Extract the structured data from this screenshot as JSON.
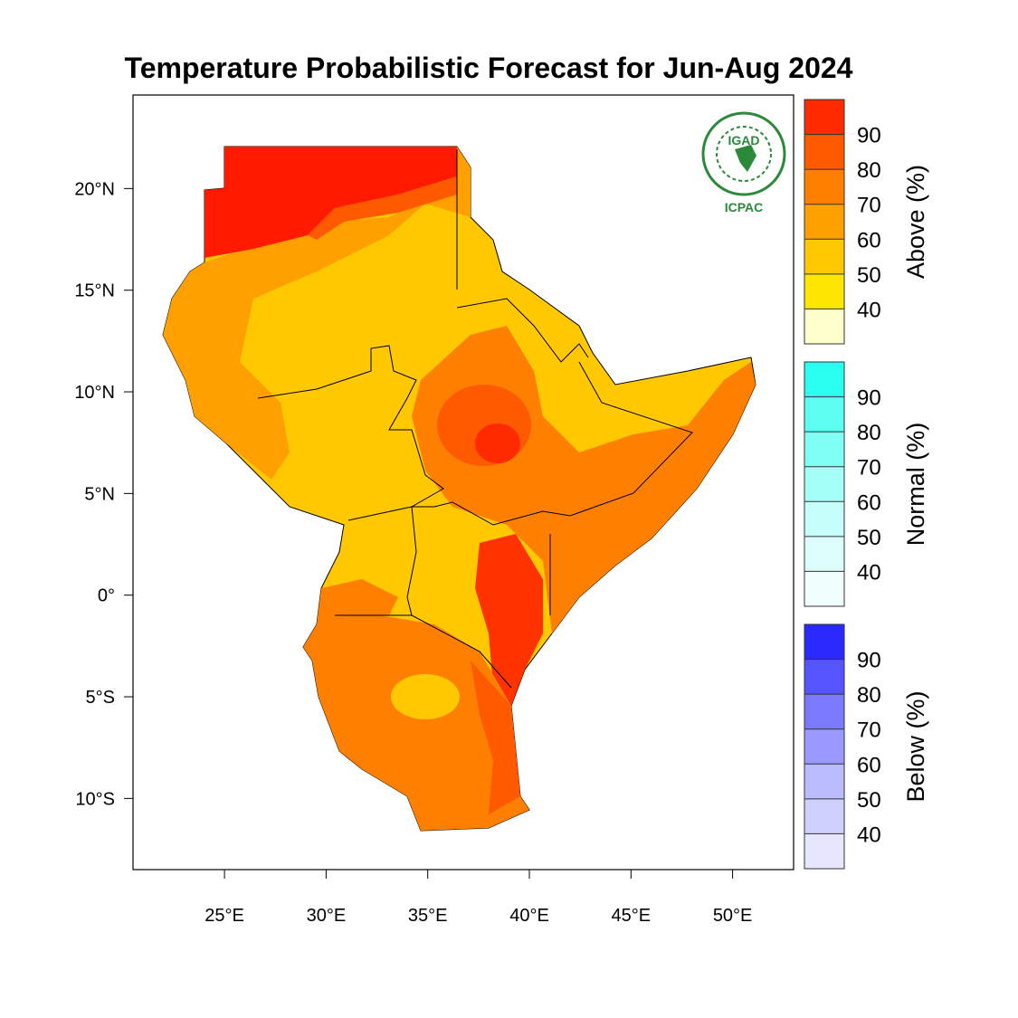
{
  "title": "Temperature Probabilistic Forecast for Jun-Aug 2024",
  "map": {
    "xlim": [
      20.5,
      53
    ],
    "ylim": [
      -13.5,
      24.6
    ],
    "xticks": [
      {
        "value": 25,
        "label": "25°E"
      },
      {
        "value": 30,
        "label": "30°E"
      },
      {
        "value": 35,
        "label": "35°E"
      },
      {
        "value": 40,
        "label": "40°E"
      },
      {
        "value": 45,
        "label": "45°E"
      },
      {
        "value": 50,
        "label": "50°E"
      }
    ],
    "yticks": [
      {
        "value": 20,
        "label": "20°N"
      },
      {
        "value": 15,
        "label": "15°N"
      },
      {
        "value": 10,
        "label": "10°N"
      },
      {
        "value": 5,
        "label": "5°N"
      },
      {
        "value": 0,
        "label": "0°"
      },
      {
        "value": -5,
        "label": "5°S"
      },
      {
        "value": -10,
        "label": "10°S"
      }
    ]
  },
  "logo": {
    "top": "IGAD",
    "bottom": "ICPAC"
  },
  "legend": [
    {
      "title": "Above (%)",
      "ticks": [
        40,
        50,
        60,
        70,
        80,
        90
      ],
      "colors": [
        "#ffffcc",
        "#ffe600",
        "#ffc800",
        "#ff9f00",
        "#ff7f00",
        "#ff5a00",
        "#ff2a00"
      ]
    },
    {
      "title": "Normal (%)",
      "ticks": [
        40,
        50,
        60,
        70,
        80,
        90
      ],
      "colors": [
        "#f0fffe",
        "#dcfffc",
        "#c4fffb",
        "#a3fff8",
        "#80fff5",
        "#5cfff2",
        "#2afff0"
      ]
    },
    {
      "title": "Below (%)",
      "ticks": [
        40,
        50,
        60,
        70,
        80,
        90
      ],
      "colors": [
        "#e6e6ff",
        "#d0d0ff",
        "#bbbbff",
        "#9999ff",
        "#7a7aff",
        "#5555ff",
        "#2a2aff"
      ]
    }
  ]
}
